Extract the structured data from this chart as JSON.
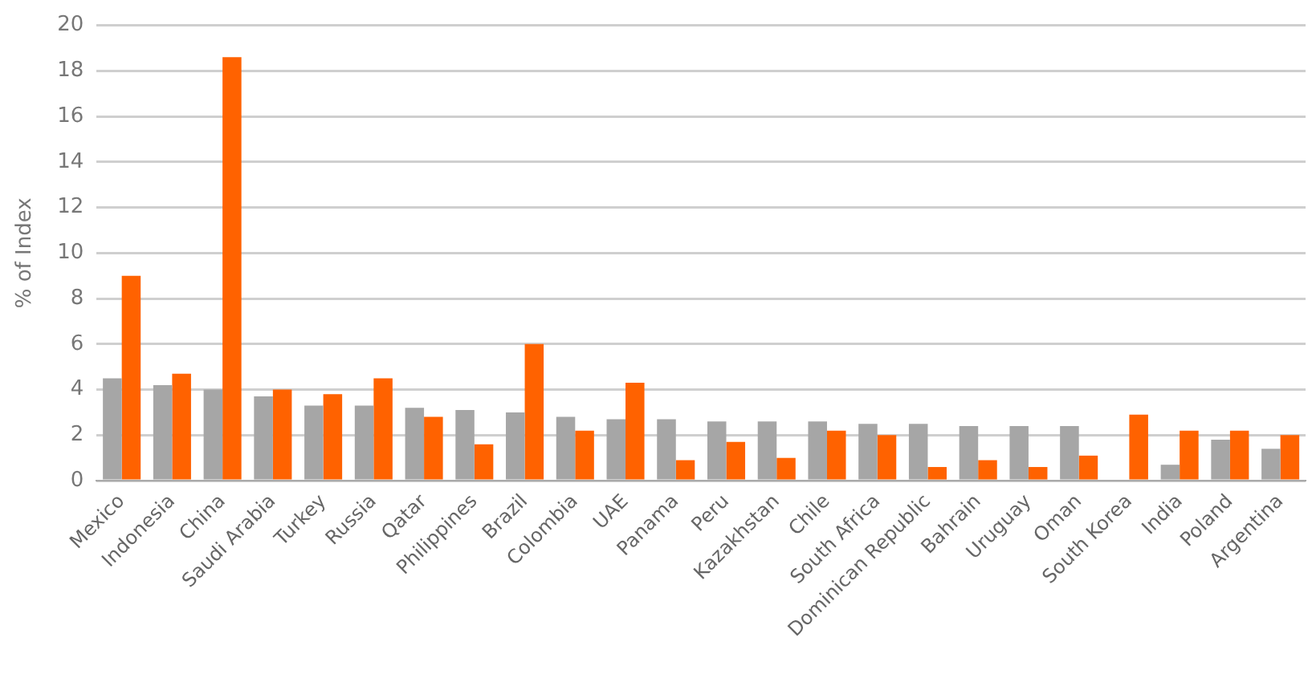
{
  "chart_data": {
    "type": "bar",
    "ylabel": "% of Index",
    "categories": [
      "Mexico",
      "Indonesia",
      "China",
      "Saudi Arabia",
      "Turkey",
      "Russia",
      "Qatar",
      "Philippines",
      "Brazil",
      "Colombia",
      "UAE",
      "Panama",
      "Peru",
      "Kazakhstan",
      "Chile",
      "South Africa",
      "Dominican Republic",
      "Bahrain",
      "Uruguay",
      "Oman",
      "South Korea",
      "India",
      "Poland",
      "Argentina"
    ],
    "series": [
      {
        "color": "#a6a6a6",
        "values": [
          4.5,
          4.2,
          4.0,
          3.7,
          3.3,
          3.3,
          3.2,
          3.1,
          3.0,
          2.8,
          2.7,
          2.7,
          2.6,
          2.6,
          2.6,
          2.5,
          2.5,
          2.4,
          2.4,
          2.4,
          null,
          0.7,
          1.8,
          1.4
        ]
      },
      {
        "color": "#ff6200",
        "values": [
          9.0,
          4.7,
          18.6,
          4.0,
          3.8,
          4.5,
          2.8,
          1.6,
          6.0,
          2.2,
          4.3,
          0.9,
          1.7,
          1.0,
          2.2,
          2.0,
          0.6,
          0.9,
          0.6,
          1.1,
          2.9,
          2.2,
          2.2,
          2.0
        ]
      }
    ],
    "ylim": [
      0,
      20
    ],
    "yticks": [
      0,
      2,
      4,
      6,
      8,
      10,
      12,
      14,
      16,
      18,
      20
    ],
    "grid": "y",
    "legend": false
  }
}
